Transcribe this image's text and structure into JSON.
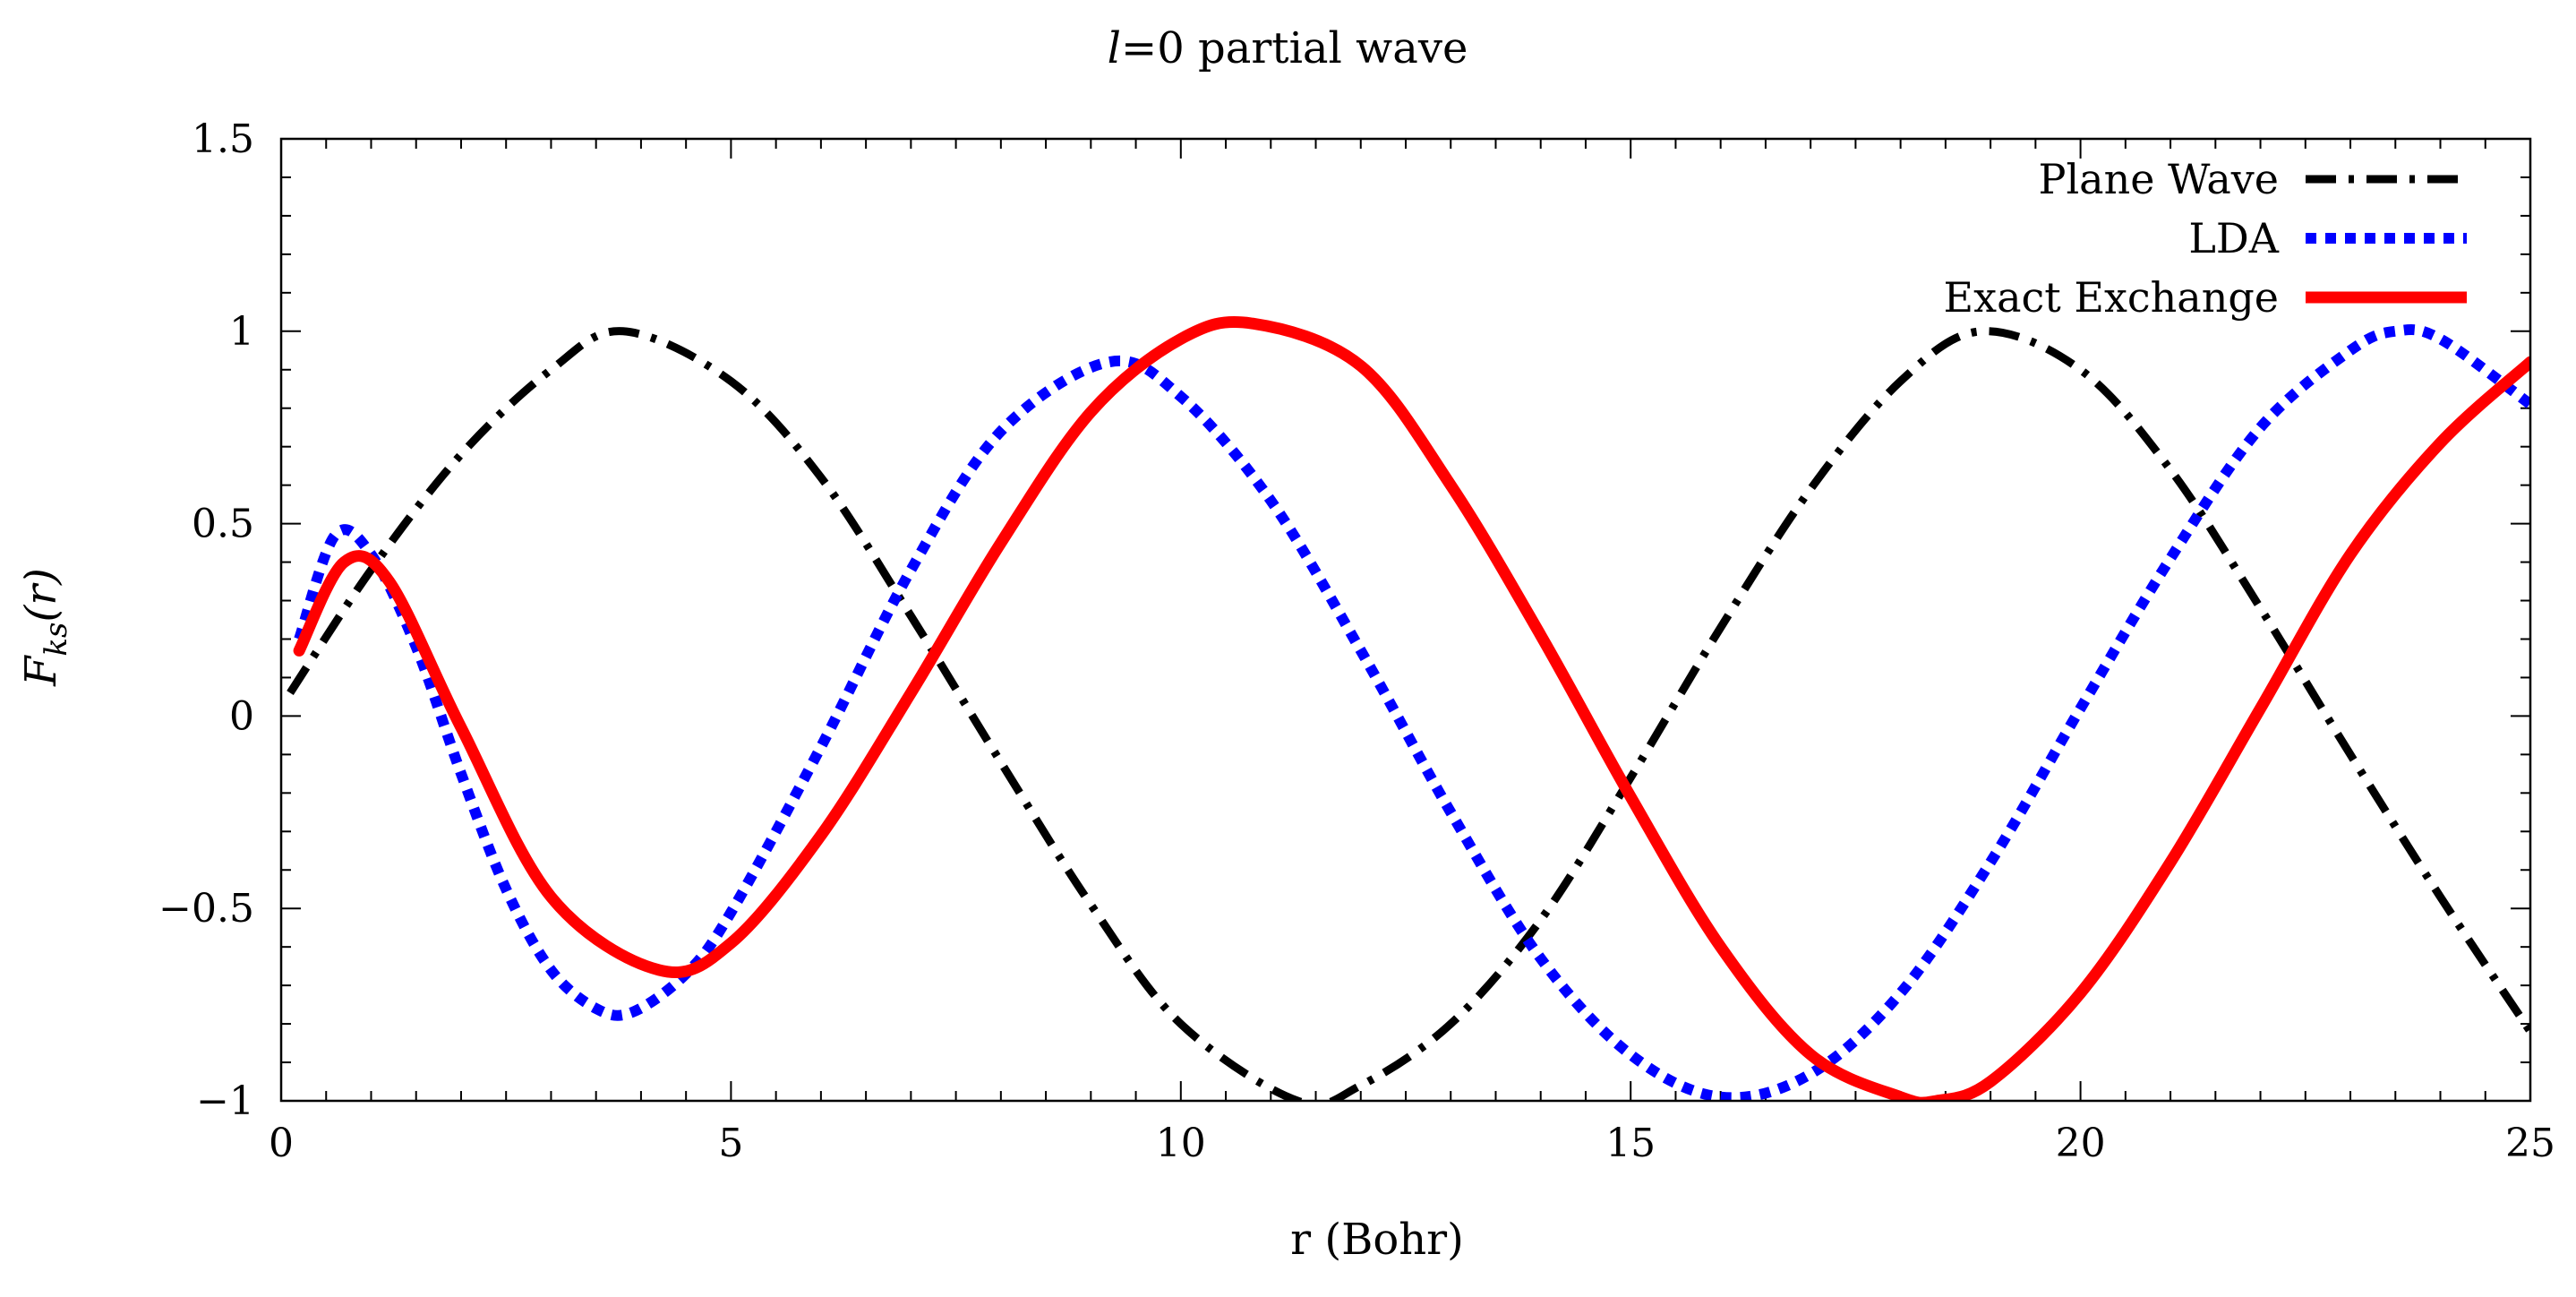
{
  "chart_data": {
    "type": "line",
    "title": "l=0 partial wave",
    "title_parts": {
      "var": "l",
      "rest": "=0 partial wave"
    },
    "xlabel": "r (Bohr)",
    "ylabel": "F_ks(r)",
    "ylabel_parts": {
      "main": "F",
      "sub": "ks",
      "rest": "(r)"
    },
    "xlim": [
      0,
      25
    ],
    "ylim": [
      -1,
      1.5
    ],
    "xticks": [
      0,
      5,
      10,
      15,
      20,
      25
    ],
    "xtick_labels": [
      "0",
      "5",
      "10",
      "15",
      "20",
      "25"
    ],
    "yticks": [
      -1,
      -0.5,
      0,
      0.5,
      1,
      1.5
    ],
    "ytick_labels": [
      "−1",
      "−0.5",
      "0",
      "0.5",
      "1",
      "1.5"
    ],
    "x_minor_step": 0.5,
    "y_minor_step": 0.1,
    "grid": false,
    "legend_position": "top-right",
    "series": [
      {
        "name": "Plane Wave",
        "color": "#000000",
        "dash": "dash-dot",
        "x": [
          0.1,
          1,
          2,
          3,
          3.8,
          5,
          6,
          7,
          8,
          9,
          10,
          11.3,
          12,
          13,
          14,
          15,
          16,
          17,
          18,
          18.9,
          20,
          21,
          22,
          23,
          24,
          25
        ],
        "y": [
          0.06,
          0.38,
          0.68,
          0.9,
          1.0,
          0.87,
          0.62,
          0.26,
          -0.12,
          -0.49,
          -0.8,
          -1.0,
          -0.96,
          -0.8,
          -0.53,
          -0.16,
          0.23,
          0.59,
          0.87,
          1.0,
          0.9,
          0.64,
          0.28,
          -0.1,
          -0.47,
          -0.82
        ]
      },
      {
        "name": "LDA",
        "color": "#0000ff",
        "dash": "dotted",
        "x": [
          0.2,
          0.6,
          1,
          1.5,
          2,
          2.5,
          3,
          3.5,
          3.9,
          4.5,
          5,
          6,
          7,
          8,
          9.2,
          10,
          11,
          12,
          13,
          14,
          15,
          16,
          17,
          18,
          19,
          20,
          21,
          22,
          23,
          23.5,
          24,
          25
        ],
        "y": [
          0.2,
          0.47,
          0.42,
          0.18,
          -0.15,
          -0.45,
          -0.66,
          -0.76,
          -0.77,
          -0.67,
          -0.51,
          -0.08,
          0.38,
          0.74,
          0.92,
          0.83,
          0.56,
          0.17,
          -0.25,
          -0.63,
          -0.88,
          -0.99,
          -0.93,
          -0.72,
          -0.38,
          0.02,
          0.41,
          0.75,
          0.95,
          1.0,
          0.98,
          0.81
        ]
      },
      {
        "name": "Exact Exchange",
        "color": "#ff0000",
        "dash": "solid",
        "x": [
          0.2,
          0.7,
          1.2,
          2,
          3,
          4.2,
          5,
          6,
          7,
          8,
          9,
          10,
          10.8,
          12,
          13,
          14,
          15,
          16,
          17,
          18,
          18.4,
          19,
          20,
          21,
          22,
          23,
          24,
          25
        ],
        "y": [
          0.17,
          0.4,
          0.35,
          -0.03,
          -0.47,
          -0.66,
          -0.59,
          -0.31,
          0.06,
          0.45,
          0.79,
          0.98,
          1.02,
          0.91,
          0.6,
          0.21,
          -0.21,
          -0.6,
          -0.88,
          -0.99,
          -1.0,
          -0.95,
          -0.72,
          -0.38,
          0.02,
          0.42,
          0.71,
          0.92
        ]
      }
    ]
  }
}
